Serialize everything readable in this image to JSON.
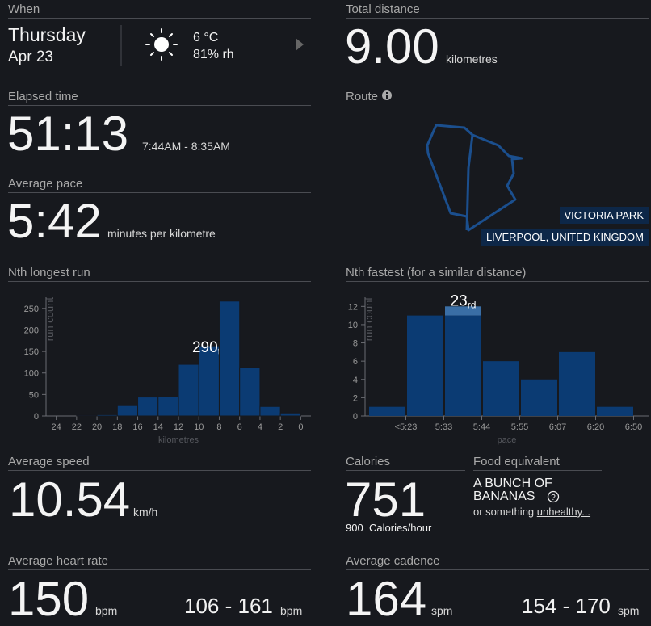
{
  "when": {
    "label": "When",
    "day": "Thursday",
    "date": "Apr 23",
    "temperature": "6 °C",
    "humidity": "81% rh"
  },
  "total_distance": {
    "label": "Total distance",
    "value": "9.00",
    "unit": "kilometres"
  },
  "elapsed_time": {
    "label": "Elapsed time",
    "value": "51:13",
    "range": "7:44AM - 8:35AM"
  },
  "route": {
    "label": "Route",
    "place": "VICTORIA PARK",
    "region": "LIVERPOOL, UNITED KINGDOM"
  },
  "average_pace": {
    "label": "Average pace",
    "value": "5:42",
    "unit": "minutes per kilometre"
  },
  "chart_data": [
    {
      "type": "histogram",
      "title": "Nth longest run",
      "bins": [
        24,
        22,
        20,
        18,
        16,
        14,
        12,
        10,
        8,
        6,
        4,
        2,
        0
      ],
      "counts": [
        0,
        2,
        3,
        24,
        44,
        46,
        120,
        163,
        267,
        112,
        22,
        7
      ],
      "color": "#0b3b73",
      "xlim": [
        25,
        -1
      ],
      "xticks": [
        24,
        22,
        20,
        18,
        16,
        14,
        12,
        10,
        8,
        6,
        4,
        2,
        0
      ],
      "ylim": [
        0,
        276
      ],
      "yticks": [
        0,
        50,
        100,
        150,
        200,
        250
      ],
      "y_label": "run count",
      "x_label": "kilometres",
      "annotation": {
        "text": "290",
        "suffix": "th"
      }
    },
    {
      "type": "bar",
      "title": "Nth fastest (for a similar distance)",
      "x_edge_labels": [
        "<5:23",
        "5:33",
        "5:44",
        "5:55",
        "6:07",
        "6:20",
        "6:50"
      ],
      "values": [
        1,
        11,
        11,
        6,
        4,
        7,
        1
      ],
      "highlight_values": [
        0,
        0,
        1,
        0,
        0,
        0,
        0
      ],
      "color": "#0b3b73",
      "highlight_color": "#3a6ea5",
      "ylim": [
        0,
        13
      ],
      "yticks": [
        0,
        2,
        4,
        6,
        8,
        10,
        12
      ],
      "y_label": "run count",
      "x_label": "pace",
      "annotation": {
        "text": "23",
        "suffix": "rd"
      }
    }
  ],
  "average_speed": {
    "label": "Average speed",
    "value": "10.54",
    "unit": "km/h"
  },
  "calories": {
    "label": "Calories",
    "value": "751",
    "rate": "900",
    "rate_unit": "Calories/hour"
  },
  "food_equivalent": {
    "label": "Food equivalent",
    "line1": "A BUNCH OF",
    "line2": "BANANAS",
    "prefix": "or something",
    "link": "unhealthy..."
  },
  "heart_rate": {
    "label": "Average heart rate",
    "value": "150",
    "unit": "bpm",
    "range": "106 - 161",
    "range_unit": "bpm"
  },
  "cadence": {
    "label": "Average cadence",
    "value": "164",
    "unit": "spm",
    "range": "154 - 170",
    "range_unit": "spm"
  }
}
